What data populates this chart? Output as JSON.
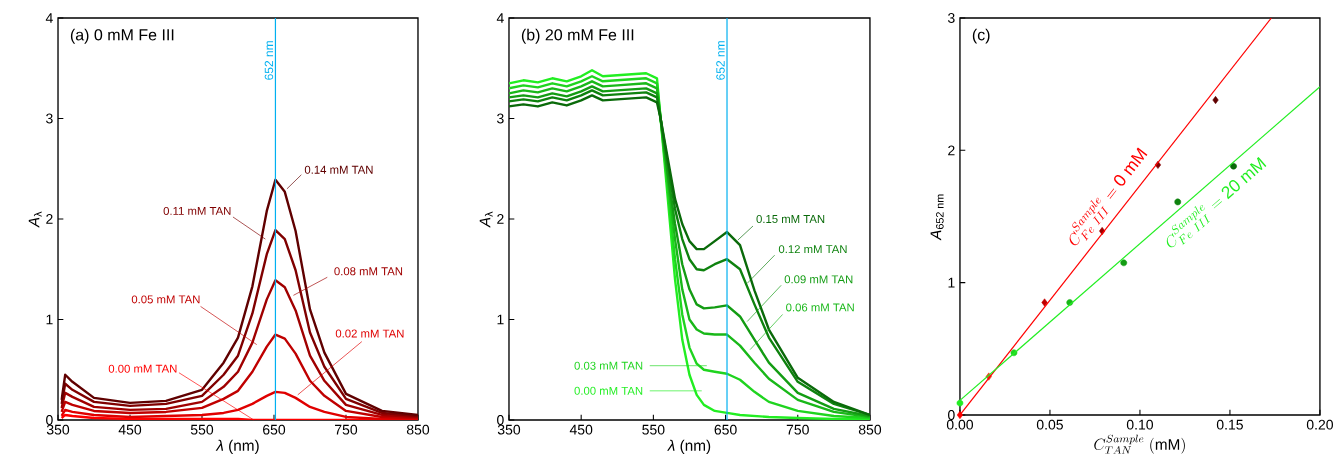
{
  "chart_data": [
    {
      "type": "line",
      "title": "(a) 0 mM Fe III",
      "xlabel": "*λ* (nm)",
      "ylabel": "*A*$_{λ}$",
      "x": [
        355,
        360,
        370,
        400,
        450,
        500,
        550,
        580,
        600,
        620,
        640,
        652,
        665,
        680,
        700,
        720,
        750,
        800,
        850
      ],
      "series": [
        {
          "name": "0.00 mM TAN",
          "color": "#ff0000",
          "values": [
            0.02,
            0.05,
            0.04,
            0.02,
            0.01,
            0.01,
            0.01,
            0.01,
            0.01,
            0,
            0,
            0,
            0,
            0,
            0,
            0,
            0,
            0,
            0
          ]
        },
        {
          "name": "0.02 mM TAN",
          "color": "#e00000",
          "values": [
            0.04,
            0.1,
            0.08,
            0.05,
            0.03,
            0.04,
            0.05,
            0.07,
            0.1,
            0.16,
            0.24,
            0.28,
            0.27,
            0.22,
            0.13,
            0.08,
            0.03,
            0.01,
            0.01
          ]
        },
        {
          "name": "0.05 mM TAN",
          "color": "#c00000",
          "values": [
            0.08,
            0.18,
            0.15,
            0.09,
            0.07,
            0.08,
            0.12,
            0.21,
            0.29,
            0.48,
            0.73,
            0.85,
            0.81,
            0.66,
            0.39,
            0.24,
            0.09,
            0.03,
            0.02
          ]
        },
        {
          "name": "0.08 mM TAN",
          "color": "#a00000",
          "values": [
            0.12,
            0.27,
            0.23,
            0.13,
            0.1,
            0.11,
            0.18,
            0.33,
            0.48,
            0.77,
            1.2,
            1.39,
            1.32,
            1.09,
            0.64,
            0.39,
            0.15,
            0.05,
            0.03
          ]
        },
        {
          "name": "0.11 mM TAN",
          "color": "#800000",
          "values": [
            0.16,
            0.36,
            0.3,
            0.18,
            0.14,
            0.16,
            0.24,
            0.45,
            0.64,
            1.06,
            1.65,
            1.89,
            1.8,
            1.49,
            0.87,
            0.53,
            0.21,
            0.07,
            0.04
          ]
        },
        {
          "name": "0.14 mM TAN",
          "color": "#600000",
          "values": [
            0.2,
            0.45,
            0.38,
            0.22,
            0.17,
            0.19,
            0.3,
            0.57,
            0.82,
            1.33,
            2.08,
            2.39,
            2.27,
            1.88,
            1.1,
            0.67,
            0.26,
            0.09,
            0.05
          ]
        }
      ],
      "xlim": [
        350,
        850
      ],
      "ylim": [
        0,
        4
      ],
      "xticks": [
        350,
        450,
        550,
        650,
        750,
        850
      ],
      "yticks": [
        0,
        1,
        2,
        3,
        4
      ],
      "ref_lines": [
        {
          "axis": "x",
          "value": 652,
          "label": "652 nm",
          "color": "#00b0f0"
        }
      ]
    },
    {
      "type": "line",
      "title": "(b) 20 mM Fe III",
      "xlabel": "*λ* (nm)",
      "ylabel": "*A*$_{λ}$",
      "x": [
        350,
        370,
        390,
        410,
        430,
        450,
        465,
        480,
        500,
        520,
        540,
        555,
        560,
        570,
        580,
        590,
        600,
        610,
        620,
        635,
        652,
        670,
        690,
        710,
        750,
        800,
        850
      ],
      "series": [
        {
          "name": "0.00 mM TAN",
          "color": "#22ee22",
          "values": [
            3.35,
            3.38,
            3.36,
            3.4,
            3.37,
            3.42,
            3.48,
            3.42,
            3.43,
            3.44,
            3.45,
            3.4,
            3.0,
            2.2,
            1.4,
            0.8,
            0.45,
            0.25,
            0.15,
            0.09,
            0.07,
            0.05,
            0.04,
            0.03,
            0.02,
            0.01,
            0.01
          ]
        },
        {
          "name": "0.03 mM TAN",
          "color": "#1fd41f",
          "values": [
            3.3,
            3.33,
            3.31,
            3.35,
            3.32,
            3.37,
            3.42,
            3.37,
            3.38,
            3.39,
            3.4,
            3.35,
            3.0,
            2.3,
            1.6,
            1.05,
            0.72,
            0.56,
            0.5,
            0.48,
            0.46,
            0.4,
            0.28,
            0.18,
            0.09,
            0.04,
            0.02
          ]
        },
        {
          "name": "0.06 mM TAN",
          "color": "#19b819",
          "values": [
            3.25,
            3.28,
            3.26,
            3.3,
            3.27,
            3.32,
            3.37,
            3.32,
            3.33,
            3.34,
            3.35,
            3.3,
            3.0,
            2.4,
            1.8,
            1.3,
            1.0,
            0.9,
            0.86,
            0.85,
            0.85,
            0.74,
            0.57,
            0.41,
            0.2,
            0.08,
            0.03
          ]
        },
        {
          "name": "0.09 mM TAN",
          "color": "#139c13",
          "values": [
            3.21,
            3.23,
            3.21,
            3.25,
            3.22,
            3.27,
            3.32,
            3.27,
            3.28,
            3.29,
            3.3,
            3.25,
            3.0,
            2.45,
            1.95,
            1.55,
            1.3,
            1.15,
            1.11,
            1.12,
            1.14,
            1.03,
            0.8,
            0.57,
            0.27,
            0.11,
            0.04
          ]
        },
        {
          "name": "0.12 mM TAN",
          "color": "#0e820e",
          "values": [
            3.17,
            3.19,
            3.17,
            3.21,
            3.18,
            3.23,
            3.28,
            3.23,
            3.24,
            3.25,
            3.26,
            3.21,
            3.0,
            2.55,
            2.1,
            1.8,
            1.6,
            1.5,
            1.49,
            1.55,
            1.6,
            1.5,
            1.15,
            0.82,
            0.38,
            0.16,
            0.05
          ]
        },
        {
          "name": "0.15 mM TAN",
          "color": "#0a6a0a",
          "values": [
            3.12,
            3.14,
            3.12,
            3.16,
            3.13,
            3.18,
            3.23,
            3.18,
            3.19,
            3.2,
            3.21,
            3.16,
            3.0,
            2.6,
            2.2,
            1.95,
            1.78,
            1.7,
            1.7,
            1.78,
            1.87,
            1.74,
            1.29,
            0.9,
            0.42,
            0.18,
            0.05
          ]
        }
      ],
      "xlim": [
        350,
        850
      ],
      "ylim": [
        0,
        4
      ],
      "xticks": [
        350,
        450,
        550,
        650,
        750,
        850
      ],
      "yticks": [
        0,
        1,
        2,
        3,
        4
      ],
      "ref_lines": [
        {
          "axis": "x",
          "value": 652,
          "label": "652 nm",
          "color": "#00b0f0"
        }
      ]
    },
    {
      "type": "scatter",
      "title": "(c)",
      "xlabel": "C^{Sample}_{TAN}\\ \\mathrm{(mM)}",
      "ylabel": "*A*$_{652 nm}$",
      "series": [
        {
          "color": "#c00000",
          "marker": "diamond",
          "x": [
            0,
            0.016,
            0.047,
            0.079,
            0.11,
            0.142
          ],
          "values": [
            0,
            0.29,
            0.85,
            1.39,
            1.89,
            2.38
          ],
          "colors": [
            "#ff0000",
            "#e8401a",
            "#c00000",
            "#a00000",
            "#800000",
            "#600000"
          ]
        },
        {
          "color": "#19b819",
          "marker": "circle",
          "x": [
            0,
            0.03,
            0.061,
            0.091,
            0.121,
            0.152
          ],
          "values": [
            0.09,
            0.47,
            0.85,
            1.15,
            1.61,
            1.88
          ],
          "colors": [
            "#22ee22",
            "#1fd41f",
            "#19b819",
            "#139c13",
            "#0e820e",
            "#0a6a0a"
          ]
        },
        {
          "type": "line",
          "color": "#ff0000",
          "marker": "none",
          "x": [
            0,
            0.173
          ],
          "values": [
            0,
            3
          ]
        },
        {
          "type": "line",
          "color": "#22ee22",
          "marker": "none",
          "x": [
            0,
            0.2
          ],
          "values": [
            0.11,
            2.48
          ]
        }
      ],
      "annotations": [
        "C^{Sample}_{Fe\\ III} = \\mathrm{0\\ mM}",
        "C^{Sample}_{Fe\\ III} = \\mathrm{20\\ mM}"
      ],
      "xlim": [
        0,
        0.2
      ],
      "ylim": [
        0,
        3
      ],
      "xticks": [
        {
          "value": 0,
          "label": "0.00"
        },
        {
          "value": 0.05,
          "label": "0.05"
        },
        {
          "value": 0.1,
          "label": "0.10"
        },
        {
          "value": 0.15,
          "label": "0.15"
        },
        {
          "value": 0.2,
          "label": "0.20"
        }
      ],
      "yticks": [
        0,
        1,
        2,
        3
      ]
    }
  ]
}
